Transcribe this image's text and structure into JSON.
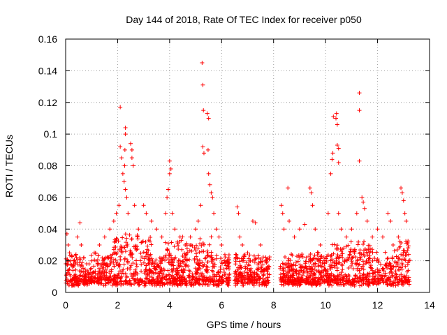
{
  "chart_data": {
    "type": "scatter",
    "title": "Day 144 of 2018, Rate Of TEC Index for receiver p050",
    "xlabel": "GPS time / hours",
    "ylabel": "ROTI / TECUs",
    "xlim": [
      0,
      14
    ],
    "ylim": [
      0,
      0.16
    ],
    "xticks": [
      "0",
      "2",
      "4",
      "6",
      "8",
      "10",
      "12",
      "14"
    ],
    "yticks": [
      "0",
      "0.02",
      "0.04",
      "0.06",
      "0.08",
      "0.1",
      "0.12",
      "0.14",
      "0.16"
    ],
    "xtick_values": [
      0,
      2,
      4,
      6,
      8,
      10,
      12,
      14
    ],
    "ytick_values": [
      0,
      0.02,
      0.04,
      0.06,
      0.08,
      0.1,
      0.12,
      0.14,
      0.16
    ],
    "grid": true,
    "marker": "+",
    "color": "#ff0000",
    "series": [
      {
        "name": "ROTI",
        "points": [
          [
            0.05,
            0.037
          ],
          [
            0.1,
            0.03
          ],
          [
            0.15,
            0.025
          ],
          [
            0.3,
            0.02
          ],
          [
            0.45,
            0.035
          ],
          [
            0.55,
            0.044
          ],
          [
            0.6,
            0.03
          ],
          [
            0.7,
            0.022
          ],
          [
            0.9,
            0.018
          ],
          [
            1.1,
            0.025
          ],
          [
            1.3,
            0.03
          ],
          [
            1.5,
            0.035
          ],
          [
            1.7,
            0.04
          ],
          [
            1.85,
            0.045
          ],
          [
            1.95,
            0.05
          ],
          [
            2.05,
            0.055
          ],
          [
            2.1,
            0.117
          ],
          [
            2.1,
            0.092
          ],
          [
            2.15,
            0.085
          ],
          [
            2.2,
            0.075
          ],
          [
            2.25,
            0.07
          ],
          [
            2.3,
            0.104
          ],
          [
            2.3,
            0.1
          ],
          [
            2.28,
            0.09
          ],
          [
            2.27,
            0.08
          ],
          [
            2.3,
            0.065
          ],
          [
            2.35,
            0.06
          ],
          [
            2.4,
            0.05
          ],
          [
            2.5,
            0.094
          ],
          [
            2.55,
            0.09
          ],
          [
            2.55,
            0.085
          ],
          [
            2.6,
            0.08
          ],
          [
            2.65,
            0.055
          ],
          [
            2.8,
            0.04
          ],
          [
            3.0,
            0.055
          ],
          [
            3.1,
            0.05
          ],
          [
            3.3,
            0.045
          ],
          [
            3.5,
            0.04
          ],
          [
            3.7,
            0.035
          ],
          [
            3.85,
            0.05
          ],
          [
            3.9,
            0.06
          ],
          [
            3.95,
            0.065
          ],
          [
            4.0,
            0.075
          ],
          [
            4.0,
            0.083
          ],
          [
            4.05,
            0.078
          ],
          [
            4.1,
            0.05
          ],
          [
            4.2,
            0.04
          ],
          [
            4.4,
            0.035
          ],
          [
            4.6,
            0.03
          ],
          [
            4.8,
            0.035
          ],
          [
            5.0,
            0.04
          ],
          [
            5.1,
            0.045
          ],
          [
            5.2,
            0.055
          ],
          [
            5.25,
            0.145
          ],
          [
            5.28,
            0.131
          ],
          [
            5.3,
            0.115
          ],
          [
            5.28,
            0.092
          ],
          [
            5.32,
            0.088
          ],
          [
            5.45,
            0.113
          ],
          [
            5.5,
            0.11
          ],
          [
            5.48,
            0.09
          ],
          [
            5.5,
            0.075
          ],
          [
            5.55,
            0.068
          ],
          [
            5.6,
            0.063
          ],
          [
            5.65,
            0.06
          ],
          [
            5.7,
            0.05
          ],
          [
            5.8,
            0.04
          ],
          [
            5.9,
            0.035
          ],
          [
            6.0,
            0.03
          ],
          [
            6.1,
            0.02
          ],
          [
            6.6,
            0.054
          ],
          [
            6.65,
            0.05
          ],
          [
            6.7,
            0.035
          ],
          [
            6.8,
            0.03
          ],
          [
            7.0,
            0.025
          ],
          [
            7.2,
            0.045
          ],
          [
            7.3,
            0.044
          ],
          [
            7.5,
            0.03
          ],
          [
            7.7,
            0.02
          ],
          [
            8.3,
            0.055
          ],
          [
            8.35,
            0.05
          ],
          [
            8.4,
            0.04
          ],
          [
            8.55,
            0.066
          ],
          [
            8.6,
            0.045
          ],
          [
            8.8,
            0.035
          ],
          [
            9.0,
            0.04
          ],
          [
            9.2,
            0.043
          ],
          [
            9.4,
            0.066
          ],
          [
            9.45,
            0.063
          ],
          [
            9.5,
            0.055
          ],
          [
            9.6,
            0.04
          ],
          [
            9.8,
            0.03
          ],
          [
            10.1,
            0.05
          ],
          [
            10.2,
            0.075
          ],
          [
            10.25,
            0.084
          ],
          [
            10.28,
            0.088
          ],
          [
            10.3,
            0.111
          ],
          [
            10.4,
            0.11
          ],
          [
            10.42,
            0.113
          ],
          [
            10.45,
            0.106
          ],
          [
            10.45,
            0.093
          ],
          [
            10.5,
            0.091
          ],
          [
            10.5,
            0.082
          ],
          [
            10.5,
            0.05
          ],
          [
            10.6,
            0.04
          ],
          [
            10.8,
            0.035
          ],
          [
            11.0,
            0.04
          ],
          [
            11.2,
            0.05
          ],
          [
            11.3,
            0.126
          ],
          [
            11.3,
            0.115
          ],
          [
            11.3,
            0.083
          ],
          [
            11.4,
            0.06
          ],
          [
            11.45,
            0.057
          ],
          [
            11.5,
            0.053
          ],
          [
            11.6,
            0.045
          ],
          [
            11.8,
            0.035
          ],
          [
            12.0,
            0.04
          ],
          [
            12.2,
            0.035
          ],
          [
            12.4,
            0.05
          ],
          [
            12.5,
            0.045
          ],
          [
            12.6,
            0.03
          ],
          [
            12.8,
            0.035
          ],
          [
            12.9,
            0.066
          ],
          [
            12.95,
            0.063
          ],
          [
            13.0,
            0.058
          ],
          [
            13.05,
            0.05
          ],
          [
            13.1,
            0.045
          ],
          [
            13.2,
            0.02
          ]
        ]
      }
    ]
  }
}
